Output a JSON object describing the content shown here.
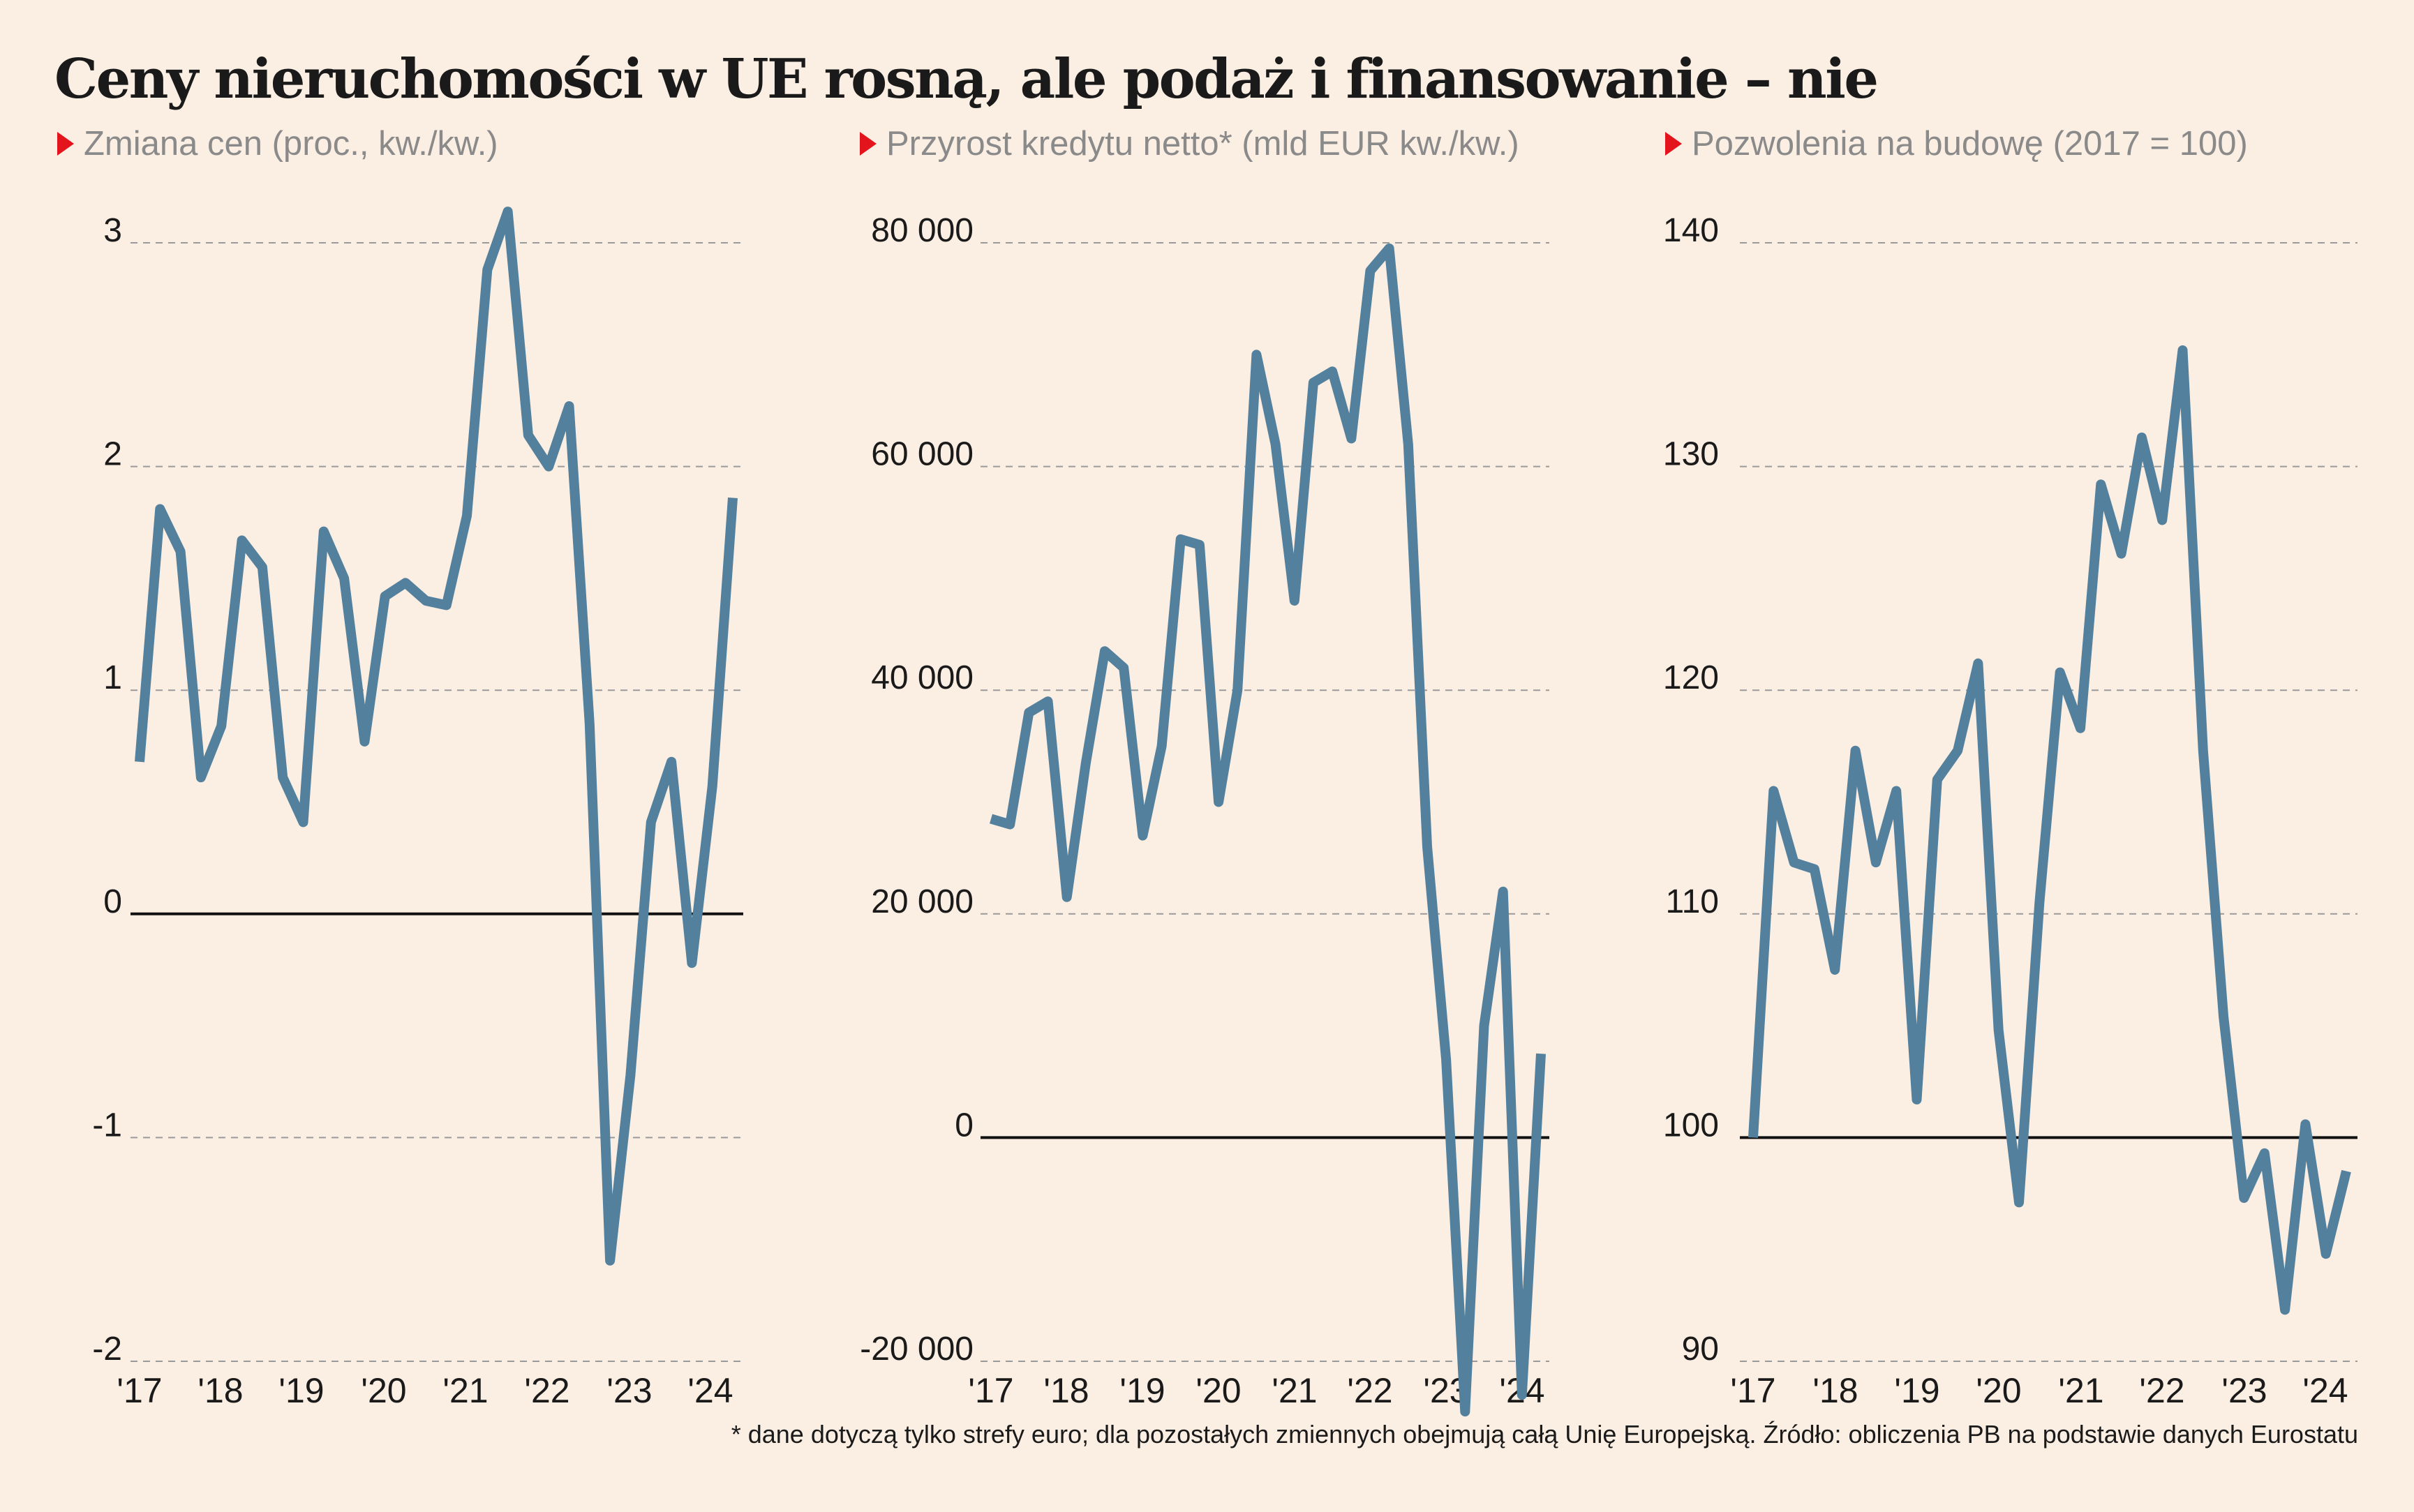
{
  "title": "Ceny nieruchomości w UE rosną, ale podaż i finansowanie – nie",
  "footnote": "* dane dotyczą tylko strefy euro; dla pozostałych zmiennych obejmują całą Unię Europejską. Źródło: obliczenia PB na podstawie danych Eurostatu",
  "colors": {
    "line": "#53809d",
    "background": "#fbeee2",
    "accent": "#e3141c",
    "grid": "#9a9a9a",
    "baseline": "#111111"
  },
  "panels": [
    {
      "title": "Zmiana cen (proc., kw./kw.)"
    },
    {
      "title": "Przyrost kredytu netto* (mld EUR kw./kw.)"
    },
    {
      "title": "Pozwolenia na budowę (2017 = 100)"
    }
  ],
  "chart_data": [
    {
      "type": "line",
      "title": "Zmiana cen (proc., kw./kw.)",
      "x": [
        "2017Q1",
        "2017Q2",
        "2017Q3",
        "2017Q4",
        "2018Q1",
        "2018Q2",
        "2018Q3",
        "2018Q4",
        "2019Q1",
        "2019Q2",
        "2019Q3",
        "2019Q4",
        "2020Q1",
        "2020Q2",
        "2020Q3",
        "2020Q4",
        "2021Q1",
        "2021Q2",
        "2021Q3",
        "2021Q4",
        "2022Q1",
        "2022Q2",
        "2022Q3",
        "2022Q4",
        "2023Q1",
        "2023Q2",
        "2023Q3",
        "2023Q4",
        "2024Q1",
        "2024Q2"
      ],
      "values": [
        0.68,
        1.81,
        1.62,
        0.61,
        0.84,
        1.67,
        1.55,
        0.61,
        0.41,
        1.71,
        1.5,
        0.77,
        1.42,
        1.48,
        1.4,
        1.38,
        1.78,
        2.88,
        3.14,
        2.14,
        2.0,
        2.27,
        0.85,
        -1.55,
        -0.72,
        0.41,
        0.68,
        -0.22,
        0.57,
        1.86
      ],
      "ylim": [
        -2,
        3
      ],
      "yticks": [
        3,
        2,
        1,
        0,
        -1,
        -2
      ],
      "ytick_labels": [
        "3",
        "2",
        "1",
        "0",
        "-1",
        "-2"
      ],
      "xtick_labels": [
        "'17",
        "'18",
        "'19",
        "'20",
        "'21",
        "'22",
        "'23",
        "'24"
      ],
      "grid": "dashed",
      "baseline": 0
    },
    {
      "type": "line",
      "title": "Przyrost kredytu netto* (mld EUR kw./kw.)",
      "x": [
        "2017Q1",
        "2017Q2",
        "2017Q3",
        "2017Q4",
        "2018Q1",
        "2018Q2",
        "2018Q3",
        "2018Q4",
        "2019Q1",
        "2019Q2",
        "2019Q3",
        "2019Q4",
        "2020Q1",
        "2020Q2",
        "2020Q3",
        "2020Q4",
        "2021Q1",
        "2021Q2",
        "2021Q3",
        "2021Q4",
        "2022Q1",
        "2022Q2",
        "2022Q3",
        "2022Q4",
        "2023Q1",
        "2023Q2",
        "2023Q3",
        "2023Q4",
        "2024Q1",
        "2024Q2"
      ],
      "values": [
        28500,
        28000,
        38000,
        39000,
        21500,
        33500,
        43500,
        42000,
        27000,
        35000,
        53500,
        53000,
        30000,
        40000,
        70000,
        62000,
        48000,
        67500,
        68500,
        62500,
        77500,
        79500,
        62000,
        26000,
        7000,
        -24500,
        10000,
        22000,
        -23000,
        7500
      ],
      "ylim": [
        -20000,
        80000
      ],
      "yticks": [
        80000,
        60000,
        40000,
        20000,
        0,
        -20000
      ],
      "ytick_labels": [
        "80 000",
        "60 000",
        "40 000",
        "20 000",
        "0",
        "-20 000"
      ],
      "xtick_labels": [
        "'17",
        "'18",
        "'19",
        "'20",
        "'21",
        "'22",
        "'23",
        "'24"
      ],
      "grid": "dashed",
      "baseline": 0
    },
    {
      "type": "line",
      "title": "Pozwolenia na budowę (2017 = 100)",
      "x": [
        "2017Q1",
        "2017Q2",
        "2017Q3",
        "2017Q4",
        "2018Q1",
        "2018Q2",
        "2018Q3",
        "2018Q4",
        "2019Q1",
        "2019Q2",
        "2019Q3",
        "2019Q4",
        "2020Q1",
        "2020Q2",
        "2020Q3",
        "2020Q4",
        "2021Q1",
        "2021Q2",
        "2021Q3",
        "2021Q4",
        "2022Q1",
        "2022Q2",
        "2022Q3",
        "2022Q4",
        "2023Q1",
        "2023Q2",
        "2023Q3",
        "2023Q4",
        "2024Q1",
        "2024Q2"
      ],
      "values": [
        100,
        115.5,
        112.3,
        112,
        107.5,
        117.3,
        112.3,
        115.5,
        101.7,
        116,
        117.3,
        121.2,
        104.8,
        97.1,
        110.5,
        120.8,
        118.3,
        129.2,
        126.1,
        131.3,
        127.6,
        135.2,
        117.3,
        105.4,
        97.3,
        99.3,
        92.3,
        100.6,
        94.8,
        98.5
      ],
      "ylim": [
        90,
        140
      ],
      "yticks": [
        140,
        130,
        120,
        110,
        100,
        90
      ],
      "ytick_labels": [
        "140",
        "130",
        "120",
        "110",
        "100",
        "90"
      ],
      "xtick_labels": [
        "'17",
        "'18",
        "'19",
        "'20",
        "'21",
        "'22",
        "'23",
        "'24"
      ],
      "grid": "dashed",
      "baseline": 100
    }
  ]
}
